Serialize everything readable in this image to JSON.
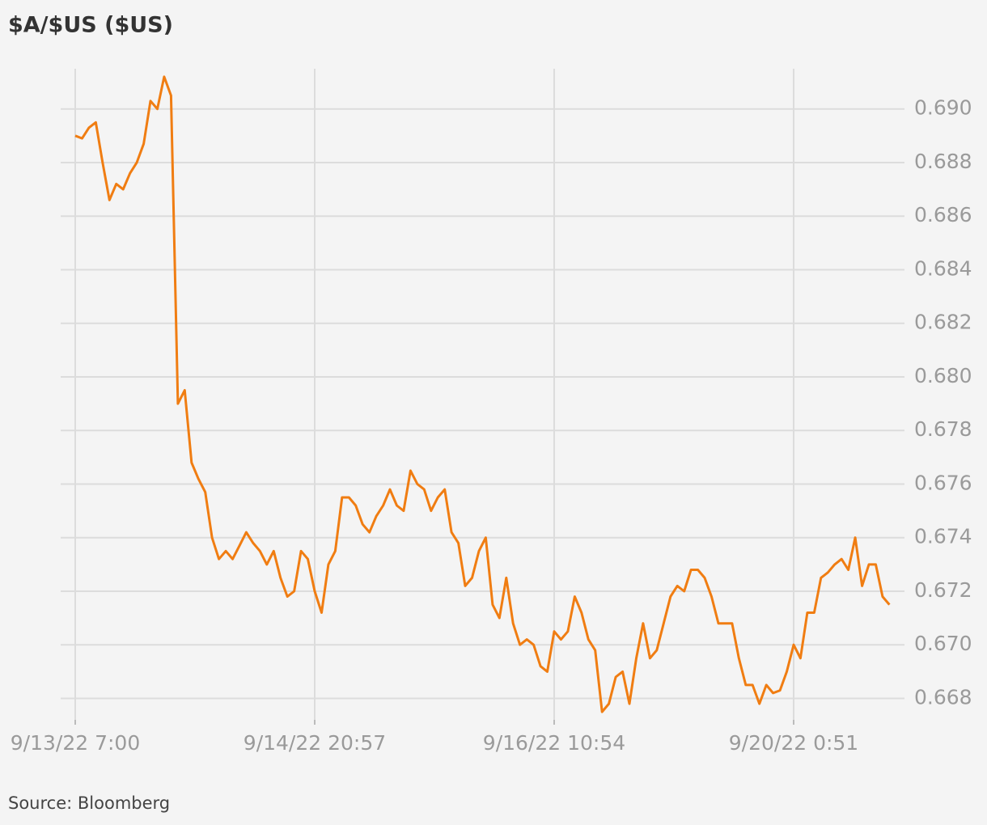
{
  "chart_data": {
    "type": "line",
    "title": "$A/$US ($US)",
    "source": "Source: Bloomberg",
    "categories": [
      "9/13/22 7:00",
      null,
      null,
      null,
      null,
      null,
      null,
      null,
      null,
      null,
      null,
      null,
      null,
      null,
      null,
      null,
      null,
      null,
      null,
      null,
      null,
      null,
      null,
      null,
      null,
      null,
      null,
      null,
      null,
      null,
      null,
      null,
      null,
      null,
      null,
      "9/14/22 20:57",
      null,
      null,
      null,
      null,
      null,
      null,
      null,
      null,
      null,
      null,
      null,
      null,
      null,
      null,
      null,
      null,
      null,
      null,
      null,
      null,
      null,
      null,
      null,
      null,
      null,
      null,
      null,
      null,
      null,
      null,
      null,
      null,
      null,
      null,
      "9/16/22 10:54",
      null,
      null,
      null,
      null,
      null,
      null,
      null,
      null,
      null,
      null,
      null,
      null,
      null,
      null,
      null,
      null,
      null,
      null,
      null,
      null,
      null,
      null,
      null,
      null,
      null,
      null,
      null,
      null,
      null,
      null,
      null,
      null,
      null,
      null,
      "9/20/22 0:51",
      null,
      null,
      null,
      null,
      null,
      null,
      null,
      null,
      null,
      null,
      null,
      null,
      null,
      null
    ],
    "values": [
      0.689,
      0.6889,
      0.6893,
      0.6895,
      0.688,
      0.6866,
      0.6872,
      0.687,
      0.6876,
      0.688,
      0.6887,
      0.6903,
      0.69,
      0.6912,
      0.6905,
      0.679,
      0.6795,
      0.6768,
      0.6762,
      0.6757,
      0.674,
      0.6732,
      0.6735,
      0.6732,
      0.6737,
      0.6742,
      0.6738,
      0.6735,
      0.673,
      0.6735,
      0.6725,
      0.6718,
      0.672,
      0.6735,
      0.6732,
      0.672,
      0.6712,
      0.673,
      0.6735,
      0.6755,
      0.6755,
      0.6752,
      0.6745,
      0.6742,
      0.6748,
      0.6752,
      0.6758,
      0.6752,
      0.675,
      0.6765,
      0.676,
      0.6758,
      0.675,
      0.6755,
      0.6758,
      0.6742,
      0.6738,
      0.6722,
      0.6725,
      0.6735,
      0.674,
      0.6715,
      0.671,
      0.6725,
      0.6708,
      0.67,
      0.6702,
      0.67,
      0.6692,
      0.669,
      0.6705,
      0.6702,
      0.6705,
      0.6718,
      0.6712,
      0.6702,
      0.6698,
      0.6675,
      0.6678,
      0.6688,
      0.669,
      0.6678,
      0.6695,
      0.6708,
      0.6695,
      0.6698,
      0.6708,
      0.6718,
      0.6722,
      0.672,
      0.6728,
      0.6728,
      0.6725,
      0.6718,
      0.6708,
      0.6708,
      0.6708,
      0.6695,
      0.6685,
      0.6685,
      0.6678,
      0.6685,
      0.6682,
      0.6683,
      0.669,
      0.67,
      0.6695,
      0.6712,
      0.6712,
      0.6725,
      0.6727,
      0.673,
      0.6732,
      0.6728,
      0.674,
      0.6722,
      0.673,
      0.673,
      0.6718,
      0.6715
    ],
    "color": "#f07d12",
    "ylim": [
      0.6672,
      0.6915
    ],
    "yticks": [
      {
        "value": 0.668,
        "label": "0.668"
      },
      {
        "value": 0.67,
        "label": "0.670"
      },
      {
        "value": 0.672,
        "label": "0.672"
      },
      {
        "value": 0.674,
        "label": "0.674"
      },
      {
        "value": 0.676,
        "label": "0.676"
      },
      {
        "value": 0.678,
        "label": "0.678"
      },
      {
        "value": 0.68,
        "label": "0.680"
      },
      {
        "value": 0.682,
        "label": "0.682"
      },
      {
        "value": 0.684,
        "label": "0.684"
      },
      {
        "value": 0.686,
        "label": "0.686"
      },
      {
        "value": 0.688,
        "label": "0.688"
      },
      {
        "value": 0.69,
        "label": "0.690"
      }
    ],
    "grid": true
  }
}
